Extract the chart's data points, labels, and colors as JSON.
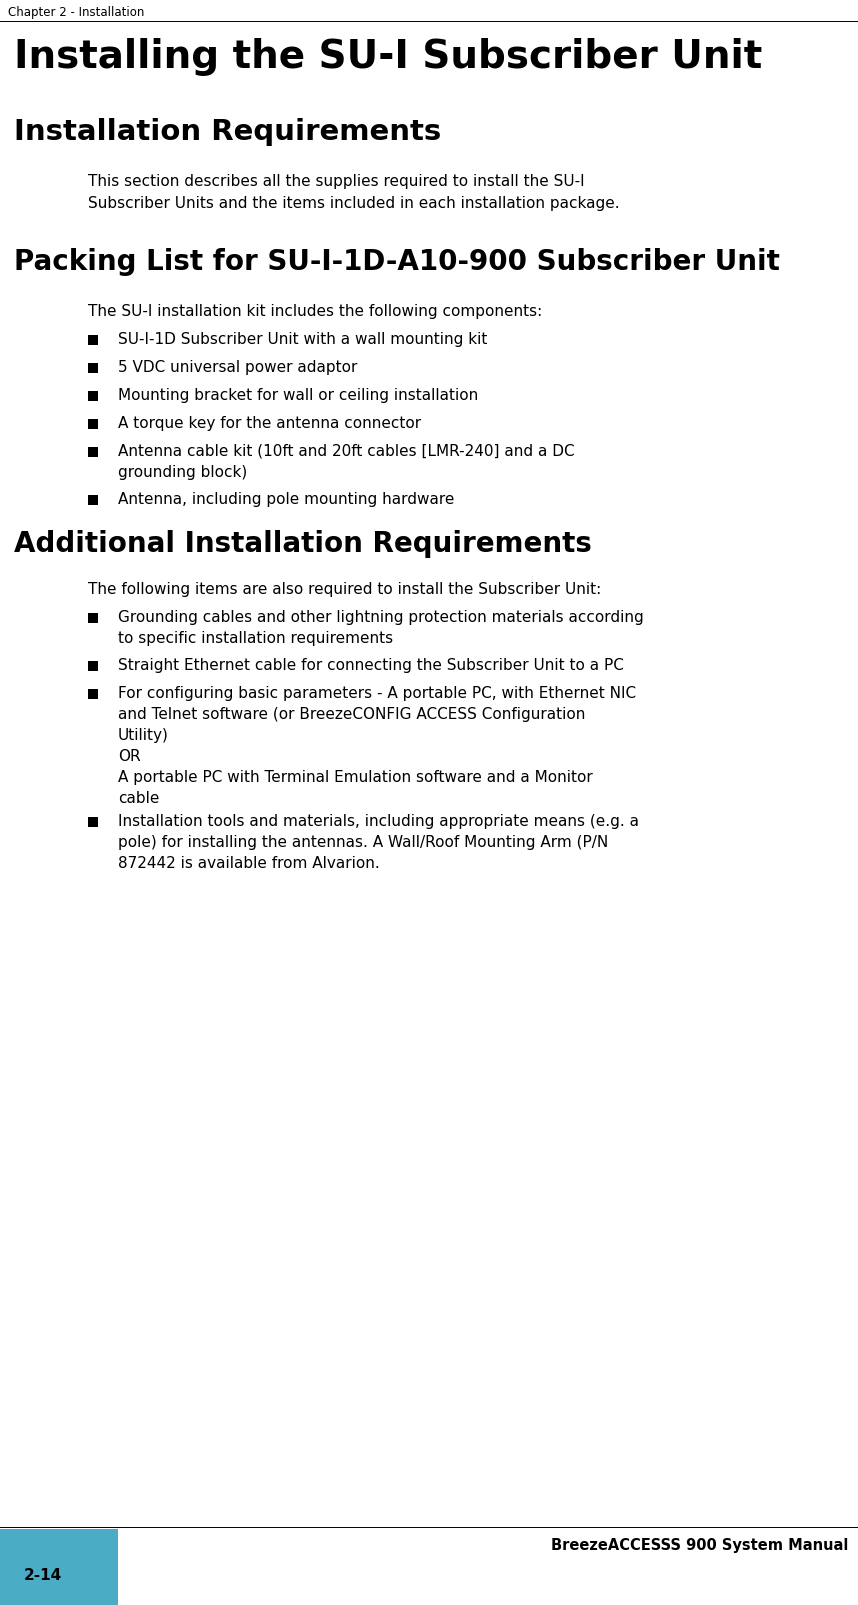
{
  "header_text": "Chapter 2 - Installation",
  "page_bg": "#ffffff",
  "main_title": "Installing the SU-I Subscriber Unit",
  "section1_title": "Installation Requirements",
  "section1_body": "This section describes all the supplies required to install the SU-I\nSubscriber Units and the items included in each installation package.",
  "section2_title": "Packing List for SU-I-1D-A10-900 Subscriber Unit",
  "section2_intro": "The SU-I installation kit includes the following components:",
  "section2_bullets": [
    "SU-I-1D Subscriber Unit with a wall mounting kit",
    "5 VDC universal power adaptor",
    "Mounting bracket for wall or ceiling installation",
    "A torque key for the antenna connector",
    "Antenna cable kit (10ft and 20ft cables [LMR-240] and a DC\ngrounding block)",
    "Antenna, including pole mounting hardware"
  ],
  "section3_title": "Additional Installation Requirements",
  "section3_intro": "The following items are also required to install the Subscriber Unit:",
  "section3_bullets": [
    "Grounding cables and other lightning protection materials according\nto specific installation requirements",
    "Straight Ethernet cable for connecting the Subscriber Unit to a PC",
    "For configuring basic parameters - A portable PC, with Ethernet NIC\nand Telnet software (or BreezeCONFIG ACCESS Configuration\nUtility)\nOR\nA portable PC with Terminal Emulation software and a Monitor\ncable",
    "Installation tools and materials, including appropriate means (e.g. a\npole) for installing the antennas. A Wall/Roof Mounting Arm (P/N\n872442 is available from Alvarion."
  ],
  "footer_right": "BreezeACCESSS 900 System Manual",
  "footer_left": "2-14",
  "footer_bar_color": "#4BACC6"
}
